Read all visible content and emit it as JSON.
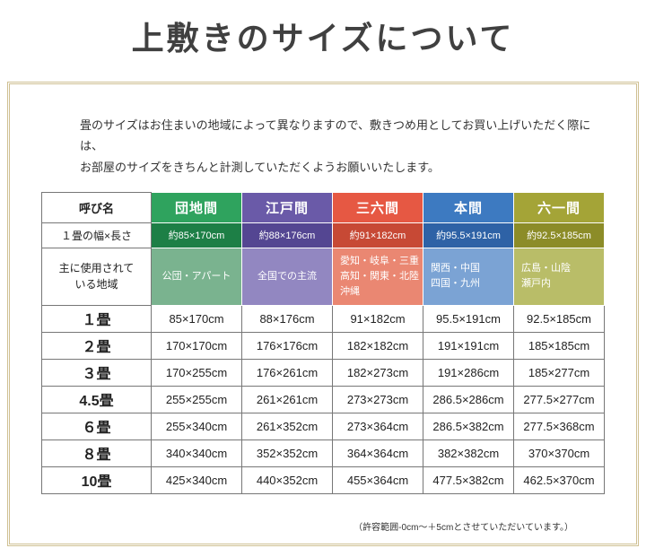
{
  "title": "上敷きのサイズについて",
  "intro": {
    "text": "畳のサイズはお住まいの地域によって異なりますので、敷きつめ用としてお買い上げいただく際には、\nお部屋のサイズをきちんと計測していただくようお願いいたします。"
  },
  "table": {
    "corner_header": "呼び名",
    "width_row_header": "１畳の幅×長さ",
    "region_row_header": "主に使用されて\nいる地域",
    "columns": [
      {
        "id": "danchima",
        "label": "団地間",
        "width": "約85×170cm",
        "regions": "公団・アパート",
        "color": "#2fa35e",
        "color_dark": "#1d7f46",
        "color_light": "#7ab38f"
      },
      {
        "id": "edoma",
        "label": "江戸間",
        "width": "約88×176cm",
        "regions": "全国での主流",
        "color": "#6a5aa8",
        "color_dark": "#544692",
        "color_light": "#9287c1"
      },
      {
        "id": "saburokuma",
        "label": "三六間",
        "width": "約91×182cm",
        "regions": "愛知・岐阜・三重\n高知・関東・北陸\n沖縄",
        "color": "#e65843",
        "color_dark": "#c74935",
        "color_light": "#ea8772"
      },
      {
        "id": "honma",
        "label": "本間",
        "width": "約95.5×191cm",
        "regions": "関西・中国\n四国・九州",
        "color": "#3d7ac1",
        "color_dark": "#2e62a6",
        "color_light": "#7ba3d4"
      },
      {
        "id": "rokuichima",
        "label": "六一間",
        "width": "約92.5×185cm",
        "regions": "広島・山陰\n瀬戸内",
        "color": "#a4a437",
        "color_dark": "#8c8c28",
        "color_light": "#b9bd68"
      }
    ],
    "size_rows": [
      {
        "label": "１畳",
        "values": [
          "85×170cm",
          "88×176cm",
          "91×182cm",
          "95.5×191cm",
          "92.5×185cm"
        ]
      },
      {
        "label": "２畳",
        "values": [
          "170×170cm",
          "176×176cm",
          "182×182cm",
          "191×191cm",
          "185×185cm"
        ]
      },
      {
        "label": "３畳",
        "values": [
          "170×255cm",
          "176×261cm",
          "182×273cm",
          "191×286cm",
          "185×277cm"
        ]
      },
      {
        "label": "4.5畳",
        "values": [
          "255×255cm",
          "261×261cm",
          "273×273cm",
          "286.5×286cm",
          "277.5×277cm"
        ]
      },
      {
        "label": "６畳",
        "values": [
          "255×340cm",
          "261×352cm",
          "273×364cm",
          "286.5×382cm",
          "277.5×368cm"
        ]
      },
      {
        "label": "８畳",
        "values": [
          "340×340cm",
          "352×352cm",
          "364×364cm",
          "382×382cm",
          "370×370cm"
        ]
      },
      {
        "label": "10畳",
        "values": [
          "425×340cm",
          "440×352cm",
          "455×364cm",
          "477.5×382cm",
          "462.5×370cm"
        ]
      }
    ]
  },
  "note": "（許容範囲-0cm～＋5cmとさせていただいています。）"
}
